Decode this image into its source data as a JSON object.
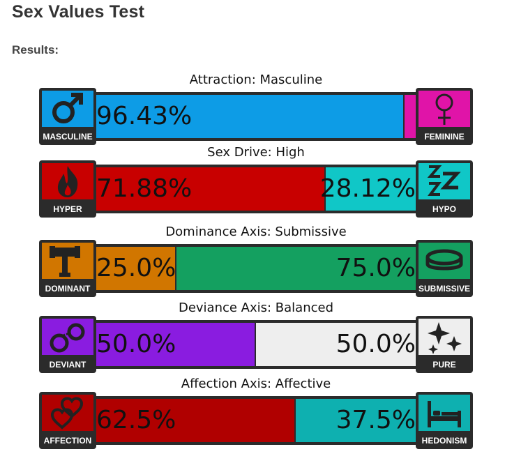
{
  "page": {
    "title": "Sex Values Test",
    "results_label": "Results:"
  },
  "axes": [
    {
      "title": "Attraction: Masculine",
      "left": {
        "label": "MASCULINE",
        "icon": "male-symbol-icon",
        "color": "#0d9ce6",
        "value_text": "96.43%",
        "value": 96.43
      },
      "right": {
        "label": "FEMININE",
        "icon": "female-symbol-icon",
        "color": "#e014a8",
        "value_text": "",
        "value": 3.57
      }
    },
    {
      "title": "Sex Drive: High",
      "left": {
        "label": "HYPER",
        "icon": "fire-icon",
        "color": "#c80000",
        "value_text": "71.88%",
        "value": 71.88
      },
      "right": {
        "label": "HYPO",
        "icon": "sleep-zzz-icon",
        "color": "#10c7c7",
        "value_text": "28.12%",
        "value": 28.12
      }
    },
    {
      "title": "Dominance Axis: Submissive",
      "left": {
        "label": "DOMINANT",
        "icon": "gavel-icon",
        "color": "#d17600",
        "value_text": "25.0%",
        "value": 25.0
      },
      "right": {
        "label": "SUBMISSIVE",
        "icon": "collar-icon",
        "color": "#14a060",
        "value_text": "75.0%",
        "value": 75.0
      }
    },
    {
      "title": "Deviance Axis: Balanced",
      "left": {
        "label": "DEVIANT",
        "icon": "handcuffs-icon",
        "color": "#8a1ce0",
        "value_text": "50.0%",
        "value": 50.0
      },
      "right": {
        "label": "PURE",
        "icon": "sparkles-icon",
        "color": "#eeeeee",
        "value_text": "50.0%",
        "value": 50.0
      }
    },
    {
      "title": "Affection Axis: Affective",
      "left": {
        "label": "AFFECTION",
        "icon": "hearts-icon",
        "color": "#b00000",
        "value_text": "62.5%",
        "value": 62.5
      },
      "right": {
        "label": "HEDONISM",
        "icon": "bed-icon",
        "color": "#0eb0b0",
        "value_text": "37.5%",
        "value": 37.5
      }
    }
  ]
}
